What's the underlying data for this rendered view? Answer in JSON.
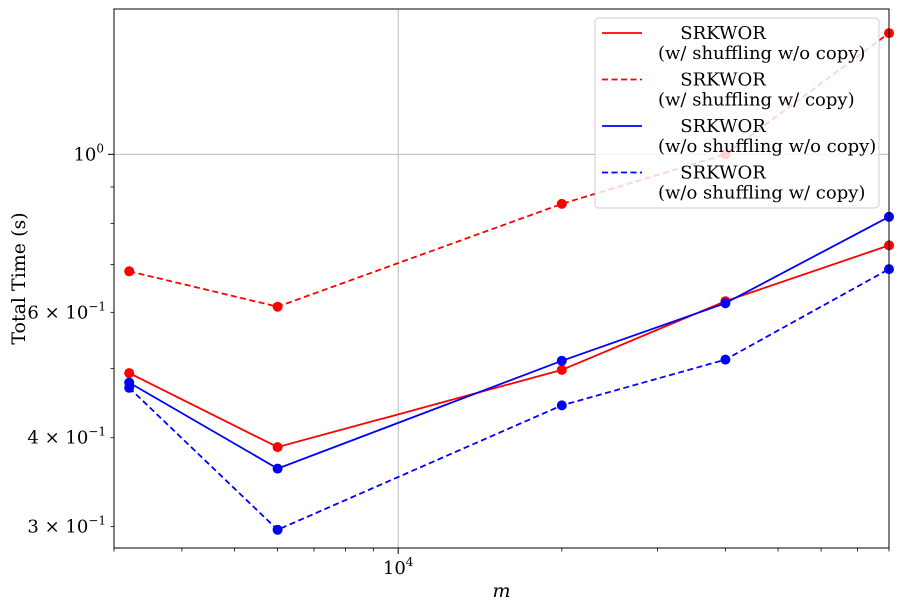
{
  "chart_data": {
    "type": "line",
    "xscale": "log",
    "yscale": "log",
    "xlabel": "m",
    "ylabel": "Total Time (s)",
    "xlim": [
      3000,
      80000
    ],
    "ylim": [
      0.28,
      1.6
    ],
    "grid": true,
    "legend_position": "top-right",
    "x_major_ticks": [
      {
        "value": 10000,
        "base": "10",
        "exp": "4"
      }
    ],
    "y_major_ticks": [
      {
        "value": 1.0,
        "mant": "",
        "base": "10",
        "exp": "0"
      }
    ],
    "y_minor_ticks": [
      {
        "value": 0.3,
        "mant": "3",
        "base": "10",
        "exp": "−1"
      },
      {
        "value": 0.4,
        "mant": "4",
        "base": "10",
        "exp": "−1"
      },
      {
        "value": 0.6,
        "mant": "6",
        "base": "10",
        "exp": "−1"
      }
    ],
    "x": [
      3200,
      6000,
      20000,
      40000,
      80000
    ],
    "series": [
      {
        "name": "SRKWOR",
        "name_detail": "(w/ shuffling w/o copy)",
        "color": "#ff0000",
        "dash": "solid",
        "values": [
          0.493,
          0.388,
          0.498,
          0.622,
          0.745
        ]
      },
      {
        "name": "SRKWOR",
        "name_detail": "(w/ shuffling w/ copy)",
        "color": "#ff0000",
        "dash": "dashed",
        "values": [
          0.685,
          0.611,
          0.852,
          1.0,
          1.48
        ]
      },
      {
        "name": "SRKWOR",
        "name_detail": "(w/o shuffling w/o copy)",
        "color": "#0000ff",
        "dash": "solid",
        "values": [
          0.478,
          0.362,
          0.513,
          0.618,
          0.817
        ]
      },
      {
        "name": "SRKWOR",
        "name_detail": "(w/o shuffling w/ copy)",
        "color": "#0000ff",
        "dash": "dashed",
        "values": [
          0.47,
          0.297,
          0.444,
          0.515,
          0.69
        ]
      }
    ]
  }
}
